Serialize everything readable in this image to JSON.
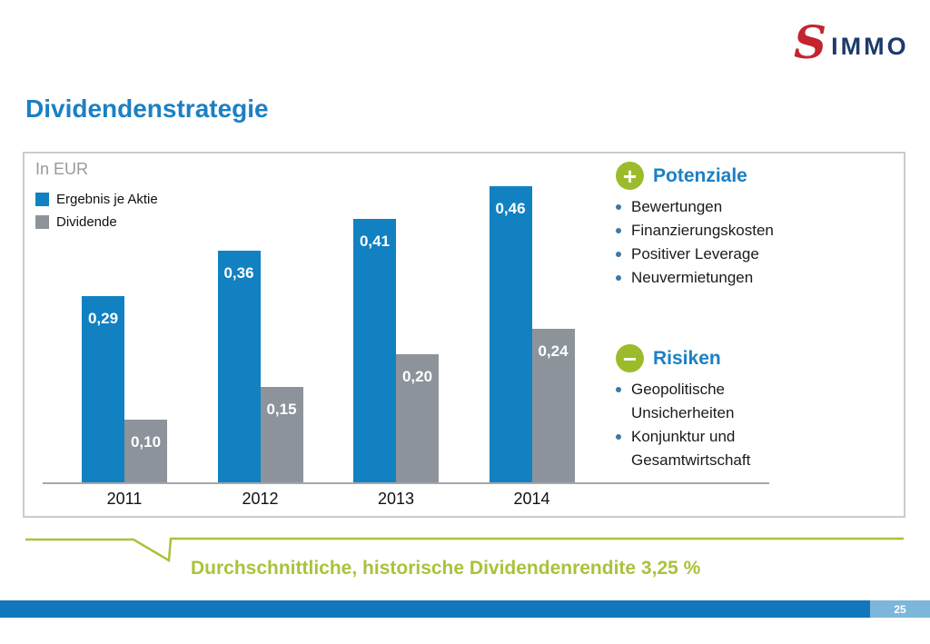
{
  "logo": {
    "mark": "S",
    "text": "IMMO"
  },
  "page_title": "Dividendenstrategie",
  "chart_data": {
    "type": "bar",
    "title": "Dividendenstrategie",
    "unit_label": "In EUR",
    "categories": [
      "2011",
      "2012",
      "2013",
      "2014"
    ],
    "series": [
      {
        "name": "Ergebnis je Aktie",
        "color": "#1181c2",
        "values": [
          0.29,
          0.36,
          0.41,
          0.46
        ],
        "value_labels": [
          "0,29",
          "0,36",
          "0,41",
          "0,46"
        ]
      },
      {
        "name": "Dividende",
        "color": "#8d939b",
        "values": [
          0.1,
          0.15,
          0.2,
          0.24
        ],
        "value_labels": [
          "0,10",
          "0,15",
          "0,20",
          "0,24"
        ]
      }
    ],
    "ylim": [
      0,
      0.5
    ],
    "grid": false,
    "legend_position": "top-left",
    "value_label_position": "inside-top",
    "annotation": "Durchschnittliche, historische Dividendenrendite 3,25 %"
  },
  "panels": {
    "potenziale": {
      "icon": "plus-icon",
      "title": "Potenziale",
      "items": [
        "Bewertungen",
        "Finanzierungskosten",
        "Positiver Leverage",
        "Neuvermietungen"
      ]
    },
    "risiken": {
      "icon": "minus-icon",
      "title": "Risiken",
      "items": [
        "Geopolitische Unsicherheiten",
        "Konjunktur und Gesamtwirtschaft"
      ]
    }
  },
  "icons": {
    "plus": "+",
    "minus": "−"
  },
  "callout": {
    "text": "Durchschnittliche, historische Dividendenrendite 3,25 %"
  },
  "footer": {
    "page_number": "25"
  },
  "colors": {
    "title_blue": "#1b80c4",
    "bar_blue": "#1181c2",
    "bar_gray": "#8d939b",
    "accent_green": "#9cbb2a",
    "callout_green": "#a8c33b",
    "footer_blue": "#1377bd",
    "footer_light_blue": "#7db6db",
    "logo_red": "#c4242e",
    "logo_navy": "#1d3a6b",
    "border_gray": "#c9cccf",
    "axis_gray": "#a3a7ab",
    "muted_gray": "#9a9a9a",
    "bullet_blue": "#3c79a8",
    "text_dark": "#1a1a1a"
  }
}
